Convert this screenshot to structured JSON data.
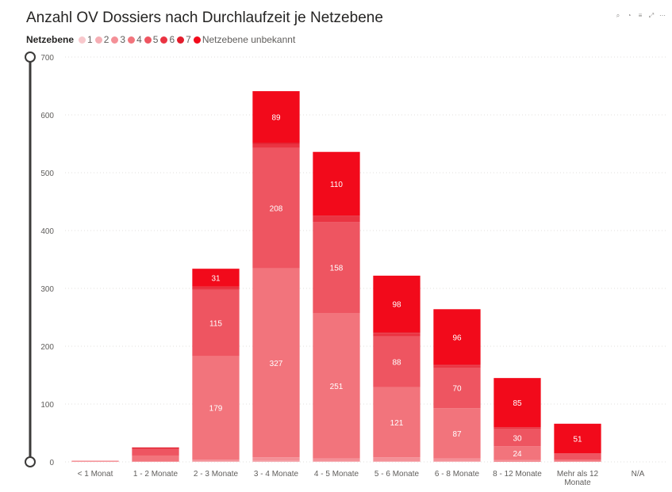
{
  "chart_data": {
    "type": "bar",
    "stacked": true,
    "title": "Anzahl OV Dossiers nach Durchlaufzeit je Netzebene",
    "legend_title": "Netzebene",
    "categories": [
      "< 1 Monat",
      "1 - 2 Monate",
      "2 - 3 Monate",
      "3 - 4 Monate",
      "4 - 5 Monate",
      "5 - 6 Monate",
      "6 - 8 Monate",
      "8 - 12 Monate",
      "Mehr als 12 Monate",
      "N/A"
    ],
    "series": [
      {
        "name": "1",
        "color": "#f8c8cc",
        "values": [
          0,
          0,
          0,
          0,
          0,
          0,
          0,
          0,
          0,
          0
        ]
      },
      {
        "name": "2",
        "color": "#f5aeb4",
        "values": [
          0,
          0,
          1,
          2,
          1,
          1,
          1,
          0,
          0,
          0
        ]
      },
      {
        "name": "3",
        "color": "#f49097",
        "values": [
          1,
          1,
          3,
          6,
          5,
          7,
          5,
          3,
          1,
          0
        ]
      },
      {
        "name": "4",
        "color": "#f2747c",
        "values": [
          1,
          10,
          179,
          327,
          251,
          121,
          87,
          24,
          3,
          0
        ]
      },
      {
        "name": "5",
        "color": "#ee5561",
        "values": [
          0,
          11,
          115,
          208,
          158,
          88,
          70,
          30,
          10,
          0
        ]
      },
      {
        "name": "6",
        "color": "#ea3442",
        "values": [
          0,
          1,
          4,
          7,
          10,
          6,
          4,
          2,
          1,
          0
        ]
      },
      {
        "name": "7",
        "color": "#e21d2c",
        "values": [
          0,
          2,
          1,
          2,
          1,
          1,
          1,
          1,
          0,
          0
        ]
      },
      {
        "name": "Netzebene unbekannt",
        "color": "#f20a1b",
        "values": [
          0,
          0,
          31,
          89,
          110,
          98,
          96,
          85,
          51,
          0
        ]
      }
    ],
    "ylim": [
      0,
      700
    ],
    "yticks": [
      0,
      100,
      200,
      300,
      400,
      500,
      600,
      700
    ],
    "grid": true,
    "legend_position": "top-left"
  }
}
